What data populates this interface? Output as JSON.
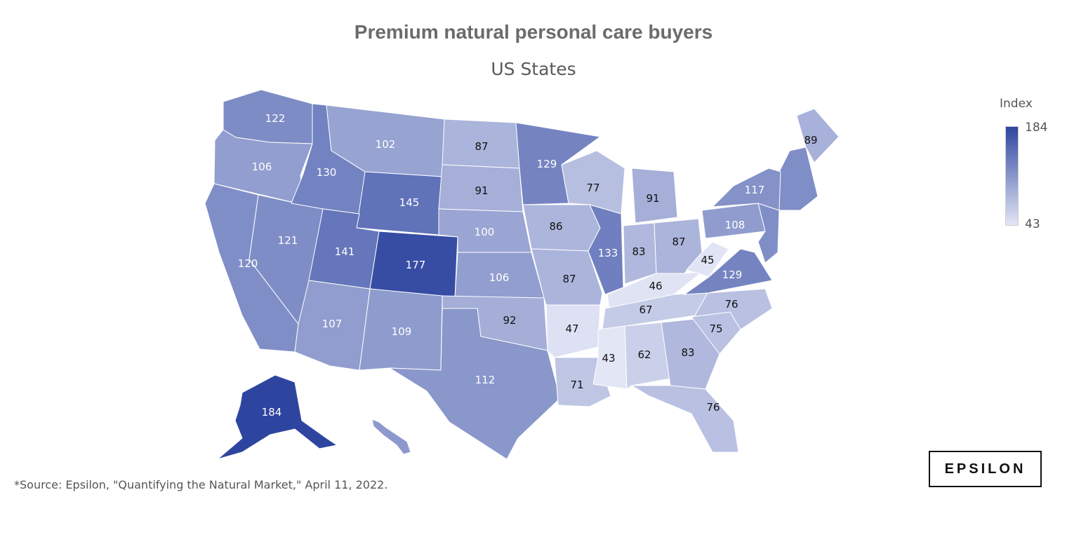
{
  "title": "Premium natural personal care buyers",
  "subtitle": "US States",
  "legend": {
    "title": "Index",
    "max": "184",
    "min": "43",
    "color_low": "#e3e6f5",
    "color_high": "#2e45a0"
  },
  "source": "*Source: Epsilon, \"Quantifying the Natural Market,\" April 11, 2022.",
  "brand": "EPSILON",
  "map_data": {
    "metric": "Index",
    "states": [
      {
        "state": "WA",
        "value": 122
      },
      {
        "state": "OR",
        "value": 106
      },
      {
        "state": "CA",
        "value": 120
      },
      {
        "state": "NV",
        "value": 121
      },
      {
        "state": "ID",
        "value": 130
      },
      {
        "state": "MT",
        "value": 102
      },
      {
        "state": "WY",
        "value": 145
      },
      {
        "state": "UT",
        "value": 141
      },
      {
        "state": "AZ",
        "value": 107
      },
      {
        "state": "CO",
        "value": 177
      },
      {
        "state": "NM",
        "value": 109
      },
      {
        "state": "ND",
        "value": 87
      },
      {
        "state": "SD",
        "value": 91
      },
      {
        "state": "NE",
        "value": 100
      },
      {
        "state": "KS",
        "value": 106
      },
      {
        "state": "OK",
        "value": 92
      },
      {
        "state": "TX",
        "value": 112
      },
      {
        "state": "MN",
        "value": 129
      },
      {
        "state": "IA",
        "value": 86
      },
      {
        "state": "MO",
        "value": 87
      },
      {
        "state": "AR",
        "value": 47
      },
      {
        "state": "LA",
        "value": 71
      },
      {
        "state": "WI",
        "value": 77
      },
      {
        "state": "IL",
        "value": 133
      },
      {
        "state": "MI",
        "value": 91
      },
      {
        "state": "IN",
        "value": 83
      },
      {
        "state": "OH",
        "value": 87
      },
      {
        "state": "KY",
        "value": 46
      },
      {
        "state": "TN",
        "value": 67
      },
      {
        "state": "MS",
        "value": 43
      },
      {
        "state": "AL",
        "value": 62
      },
      {
        "state": "GA",
        "value": 83
      },
      {
        "state": "FL",
        "value": 76
      },
      {
        "state": "SC",
        "value": 75
      },
      {
        "state": "NC",
        "value": 76
      },
      {
        "state": "VA",
        "value": 129
      },
      {
        "state": "WV",
        "value": 45
      },
      {
        "state": "PA",
        "value": 108
      },
      {
        "state": "NY",
        "value": 117
      },
      {
        "state": "ME",
        "value": 89
      },
      {
        "state": "AK",
        "value": 184
      }
    ]
  }
}
